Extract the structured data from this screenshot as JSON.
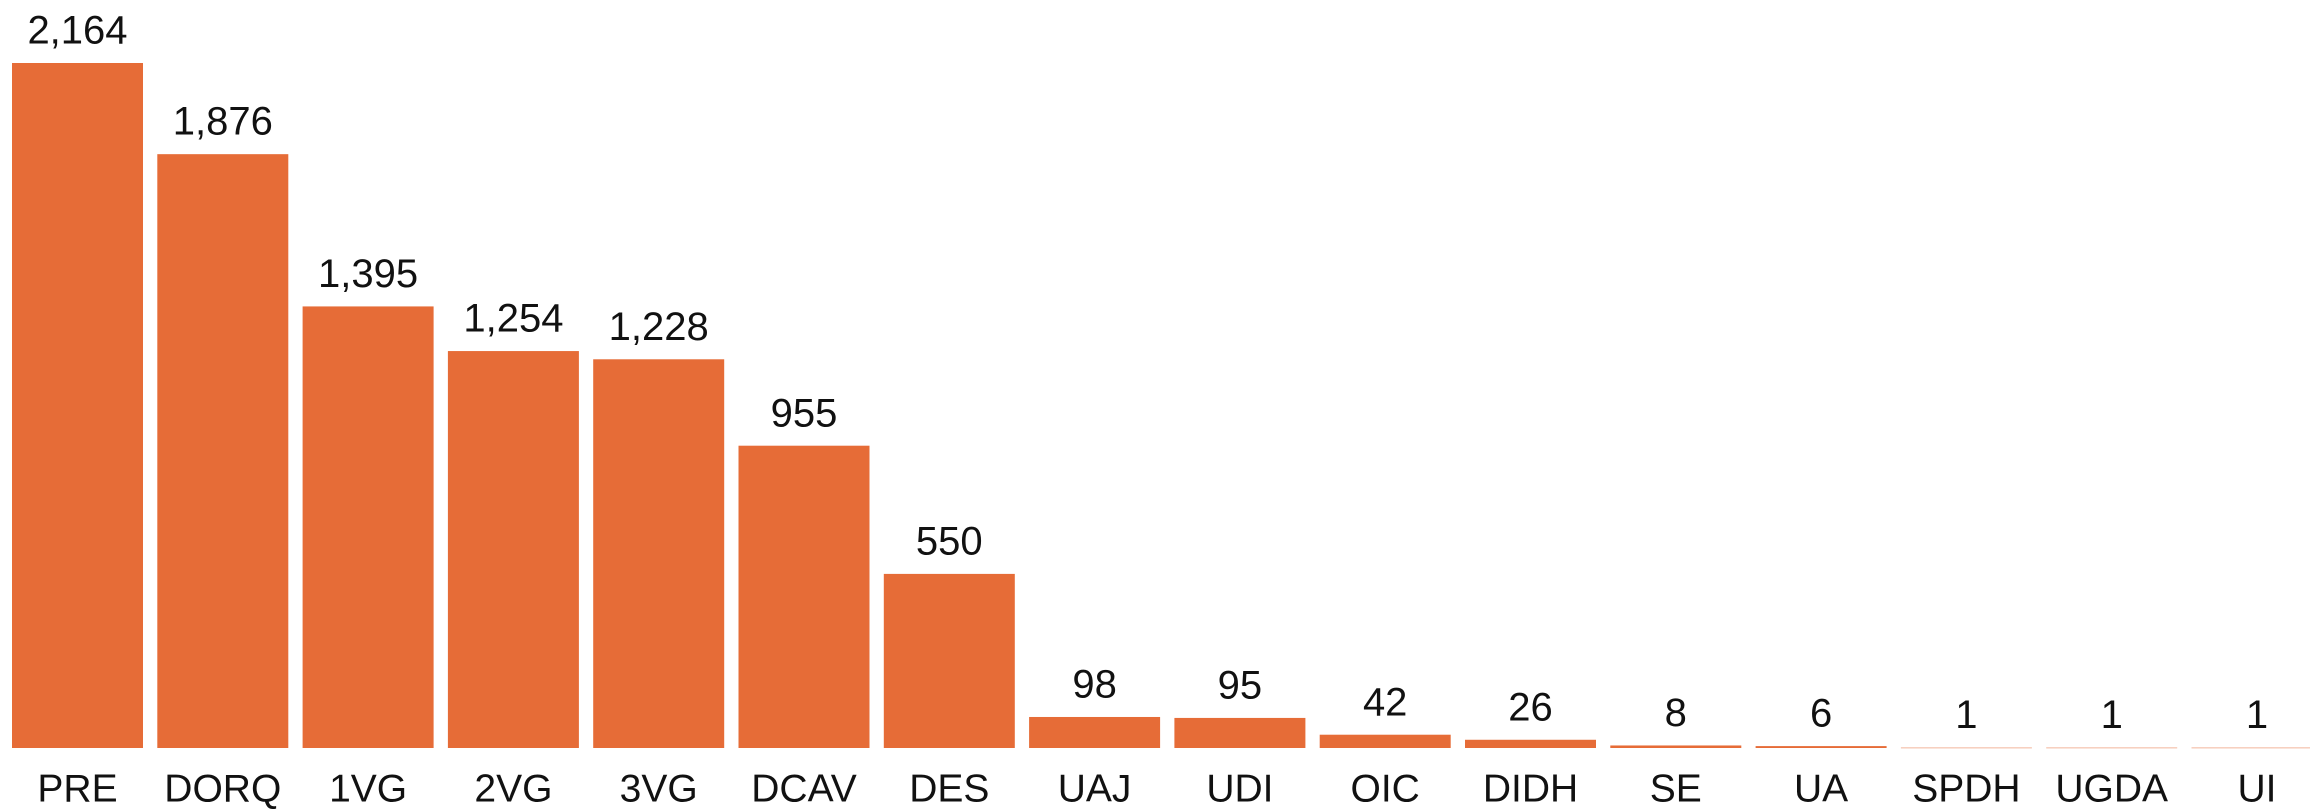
{
  "chart_data": {
    "type": "bar",
    "categories": [
      "PRE",
      "DORQ",
      "1VG",
      "2VG",
      "3VG",
      "DCAV",
      "DES",
      "UAJ",
      "UDI",
      "OIC",
      "DIDH",
      "SE",
      "UA",
      "SPDH",
      "UGDA",
      "UI"
    ],
    "values": [
      2164,
      1876,
      1395,
      1254,
      1228,
      955,
      550,
      98,
      95,
      42,
      26,
      8,
      6,
      1,
      1,
      1
    ],
    "value_labels": [
      "2,164",
      "1,876",
      "1,395",
      "1,254",
      "1,228",
      "955",
      "550",
      "98",
      "95",
      "42",
      "26",
      "8",
      "6",
      "1",
      "1",
      "1"
    ],
    "color": "#E66C37"
  }
}
